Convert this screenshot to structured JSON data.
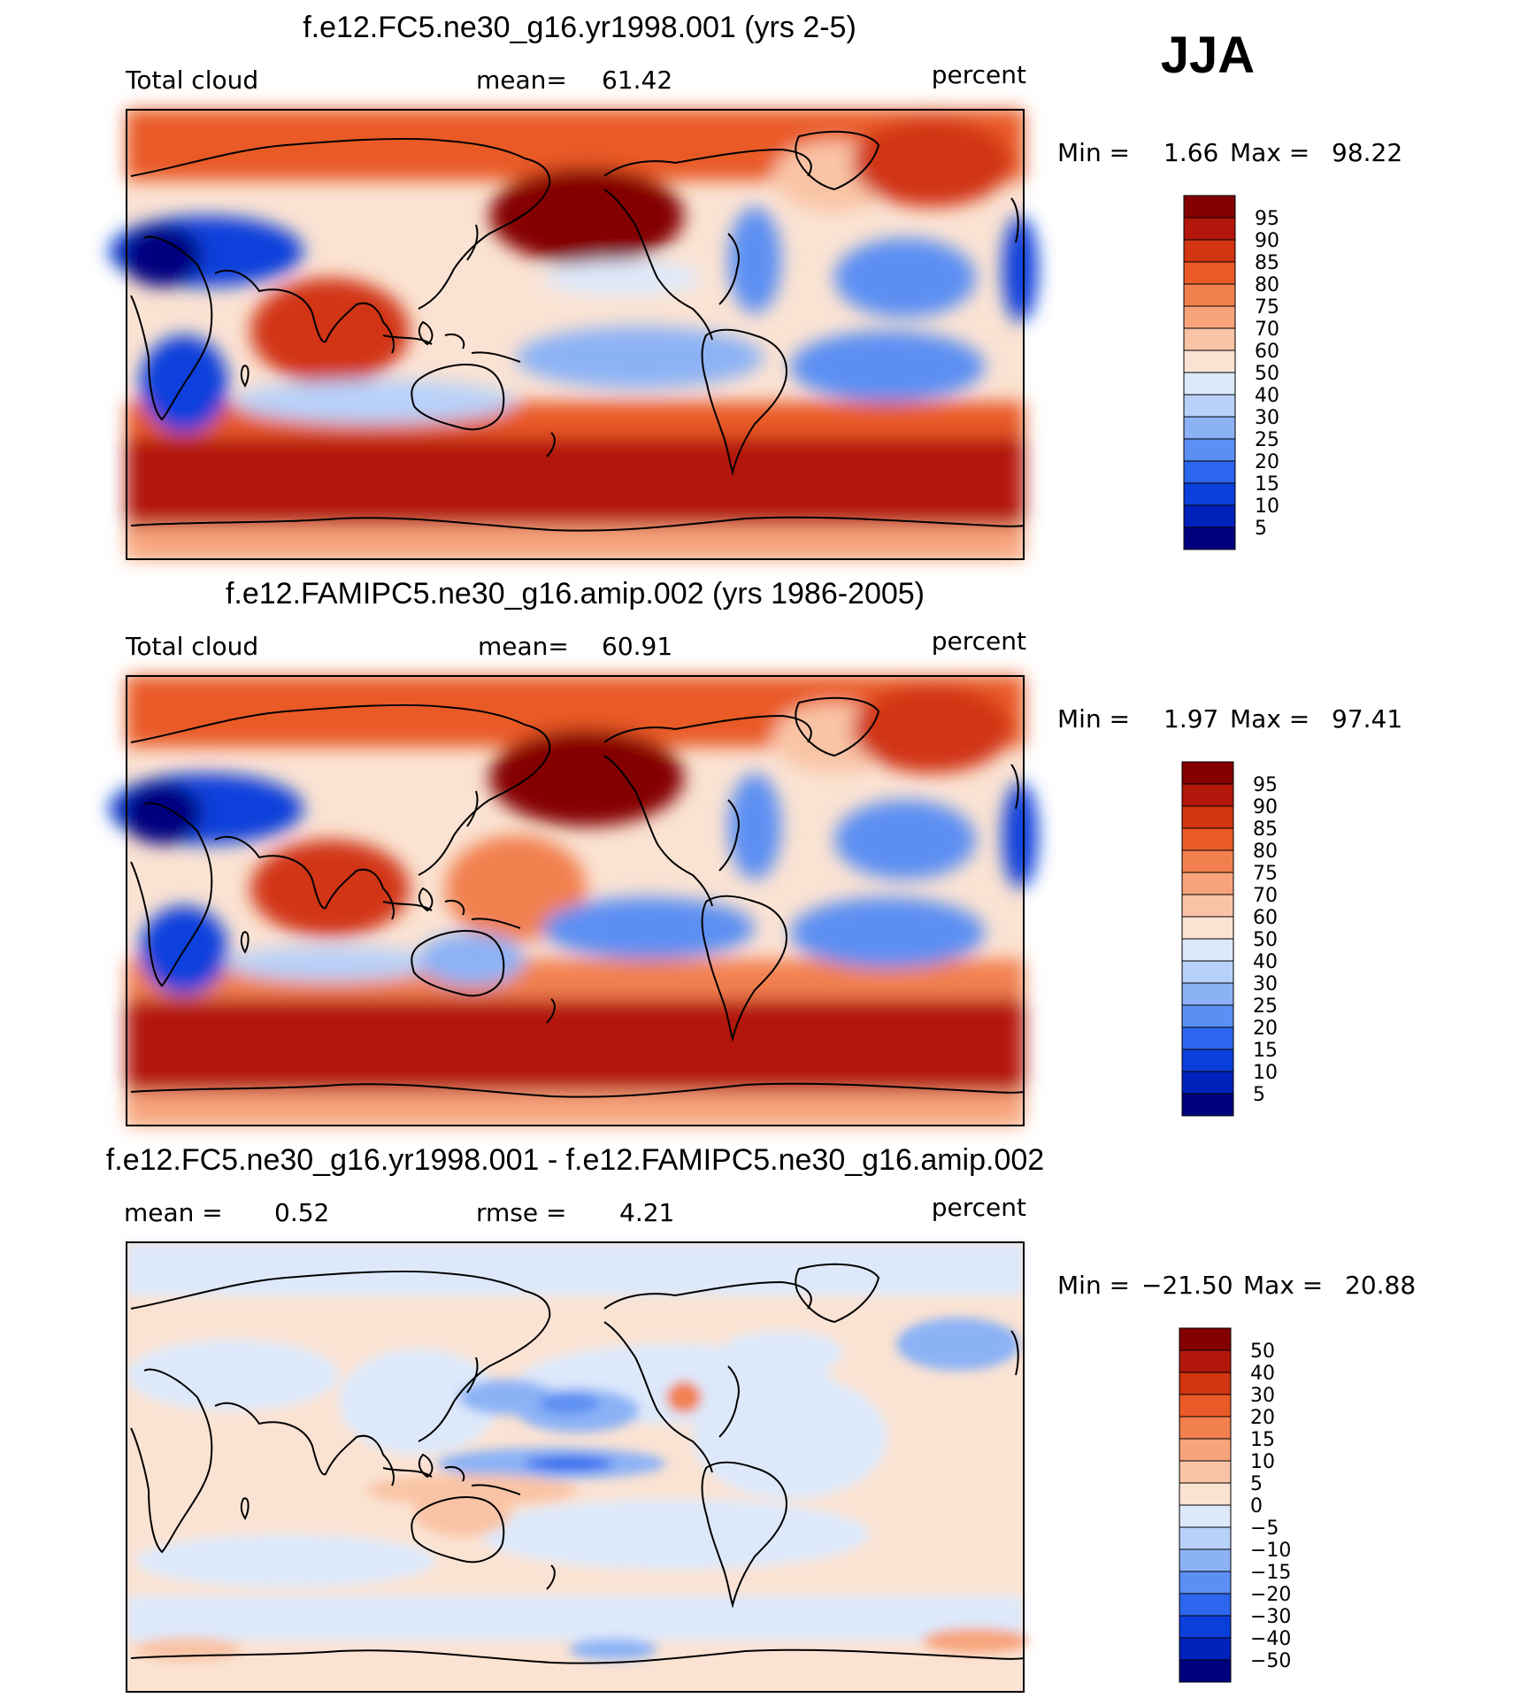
{
  "season": "JJA",
  "colors": {
    "abs": [
      "#00007f",
      "#0022bb",
      "#0b3fdc",
      "#2c66ee",
      "#5b8ff3",
      "#8cb2f6",
      "#b8d1f9",
      "#dde9fb",
      "#fbe3d3",
      "#f9c4a6",
      "#f7a47b",
      "#f2804f",
      "#e95a28",
      "#d13512",
      "#b3170b",
      "#840000"
    ],
    "diff": [
      "#00007f",
      "#0022bb",
      "#0b3fdc",
      "#2c66ee",
      "#5b8ff3",
      "#8cb2f6",
      "#b8d1f9",
      "#dde9fb",
      "#fbe3d3",
      "#f9c4a6",
      "#f7a47b",
      "#f2804f",
      "#e95a28",
      "#d13512",
      "#b3170b",
      "#840000"
    ]
  },
  "panels": [
    {
      "title": "f.e12.FC5.ne30_g16.yr1998.001 (yrs 2-5)",
      "left_label": "Total cloud",
      "stat1_label": "mean=",
      "stat1_value": "61.42",
      "units": "percent",
      "min_label": "Min =",
      "min_value": "1.66",
      "max_label": "Max =",
      "max_value": "98.22",
      "levels": [
        "95",
        "90",
        "85",
        "80",
        "75",
        "70",
        "60",
        "50",
        "40",
        "30",
        "25",
        "20",
        "15",
        "10",
        "5"
      ]
    },
    {
      "title": "f.e12.FAMIPC5.ne30_g16.amip.002 (yrs 1986-2005)",
      "left_label": "Total cloud",
      "stat1_label": "mean=",
      "stat1_value": "60.91",
      "units": "percent",
      "min_label": "Min =",
      "min_value": "1.97",
      "max_label": "Max =",
      "max_value": "97.41",
      "levels": [
        "95",
        "90",
        "85",
        "80",
        "75",
        "70",
        "60",
        "50",
        "40",
        "30",
        "25",
        "20",
        "15",
        "10",
        "5"
      ]
    },
    {
      "title": "f.e12.FC5.ne30_g16.yr1998.001 - f.e12.FAMIPC5.ne30_g16.amip.002",
      "left_label": "mean =",
      "left_value": "0.52",
      "stat1_label": "rmse =",
      "stat1_value": "4.21",
      "units": "percent",
      "min_label": "Min =",
      "min_value": "−21.50",
      "max_label": "Max =",
      "max_value": "20.88",
      "levels": [
        "50",
        "40",
        "30",
        "20",
        "15",
        "10",
        "5",
        "0",
        "−5",
        "−10",
        "−15",
        "−20",
        "−30",
        "−40",
        "−50"
      ]
    }
  ]
}
